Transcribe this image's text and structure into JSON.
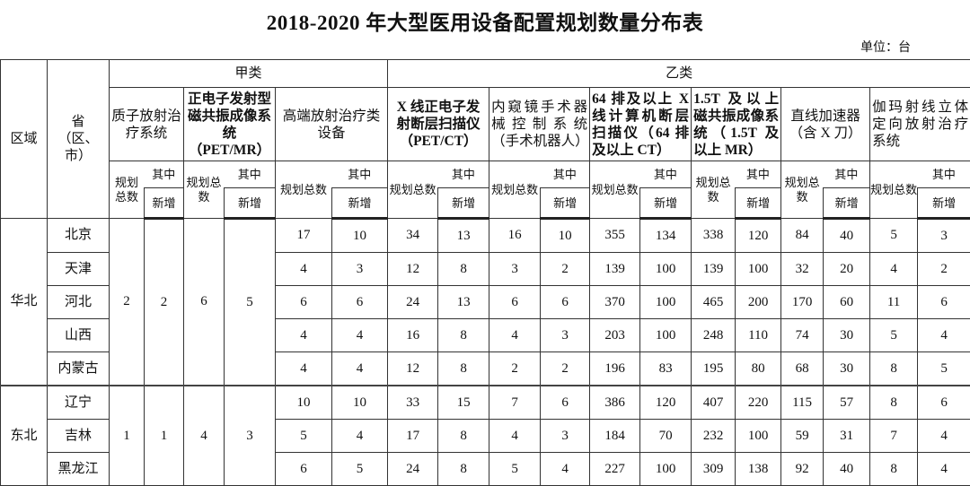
{
  "title": "2018-2020 年大型医用设备配置规划数量分布表",
  "unit": "单位：台",
  "headers": {
    "region": "区域",
    "province": "省（区、市）",
    "class_a": "甲类",
    "class_b": "乙类",
    "planned_total": "规划总数",
    "of_which": "其中",
    "new": "新增",
    "devices": [
      "质子放射治疗系统",
      "正电子发射型磁共振成像系统（PET/MR）",
      "高端放射治疗类设备",
      "X 线正电子发射断层扫描仪（PET/CT）",
      "内窥镜手术器械控制系统（手术机器人）",
      "64 排及以上 X 线计算机断层扫描仪（64 排及以上 CT）",
      "1.5T 及以上磁共振成像系统（1.5T 及以上 MR）",
      "直线加速器（含 X 刀）",
      "伽玛射线立体定向放射治疗系统"
    ]
  },
  "regions": [
    {
      "name": "华北",
      "proton": [
        "2",
        "2"
      ],
      "petmr": [
        "6",
        "5"
      ],
      "provinces": [
        {
          "name": "北京",
          "values": [
            "17",
            "10",
            "34",
            "13",
            "16",
            "10",
            "355",
            "134",
            "338",
            "120",
            "84",
            "40",
            "5",
            "3"
          ]
        },
        {
          "name": "天津",
          "values": [
            "4",
            "3",
            "12",
            "8",
            "3",
            "2",
            "139",
            "100",
            "139",
            "100",
            "32",
            "20",
            "4",
            "2"
          ]
        },
        {
          "name": "河北",
          "values": [
            "6",
            "6",
            "24",
            "13",
            "6",
            "6",
            "370",
            "100",
            "465",
            "200",
            "170",
            "60",
            "11",
            "6"
          ]
        },
        {
          "name": "山西",
          "values": [
            "4",
            "4",
            "16",
            "8",
            "4",
            "3",
            "203",
            "100",
            "248",
            "110",
            "74",
            "30",
            "5",
            "4"
          ]
        },
        {
          "name": "内蒙古",
          "values": [
            "4",
            "4",
            "12",
            "8",
            "2",
            "2",
            "196",
            "83",
            "195",
            "80",
            "68",
            "30",
            "8",
            "5"
          ]
        }
      ]
    },
    {
      "name": "东北",
      "proton": [
        "1",
        "1"
      ],
      "petmr": [
        "4",
        "3"
      ],
      "provinces": [
        {
          "name": "辽宁",
          "values": [
            "10",
            "10",
            "33",
            "15",
            "7",
            "6",
            "386",
            "120",
            "407",
            "220",
            "115",
            "57",
            "8",
            "6"
          ]
        },
        {
          "name": "吉林",
          "values": [
            "5",
            "4",
            "17",
            "8",
            "4",
            "3",
            "184",
            "70",
            "232",
            "100",
            "59",
            "31",
            "7",
            "4"
          ]
        },
        {
          "name": "黑龙江",
          "values": [
            "6",
            "5",
            "24",
            "8",
            "5",
            "4",
            "227",
            "100",
            "309",
            "138",
            "92",
            "40",
            "8",
            "4"
          ]
        }
      ]
    }
  ]
}
